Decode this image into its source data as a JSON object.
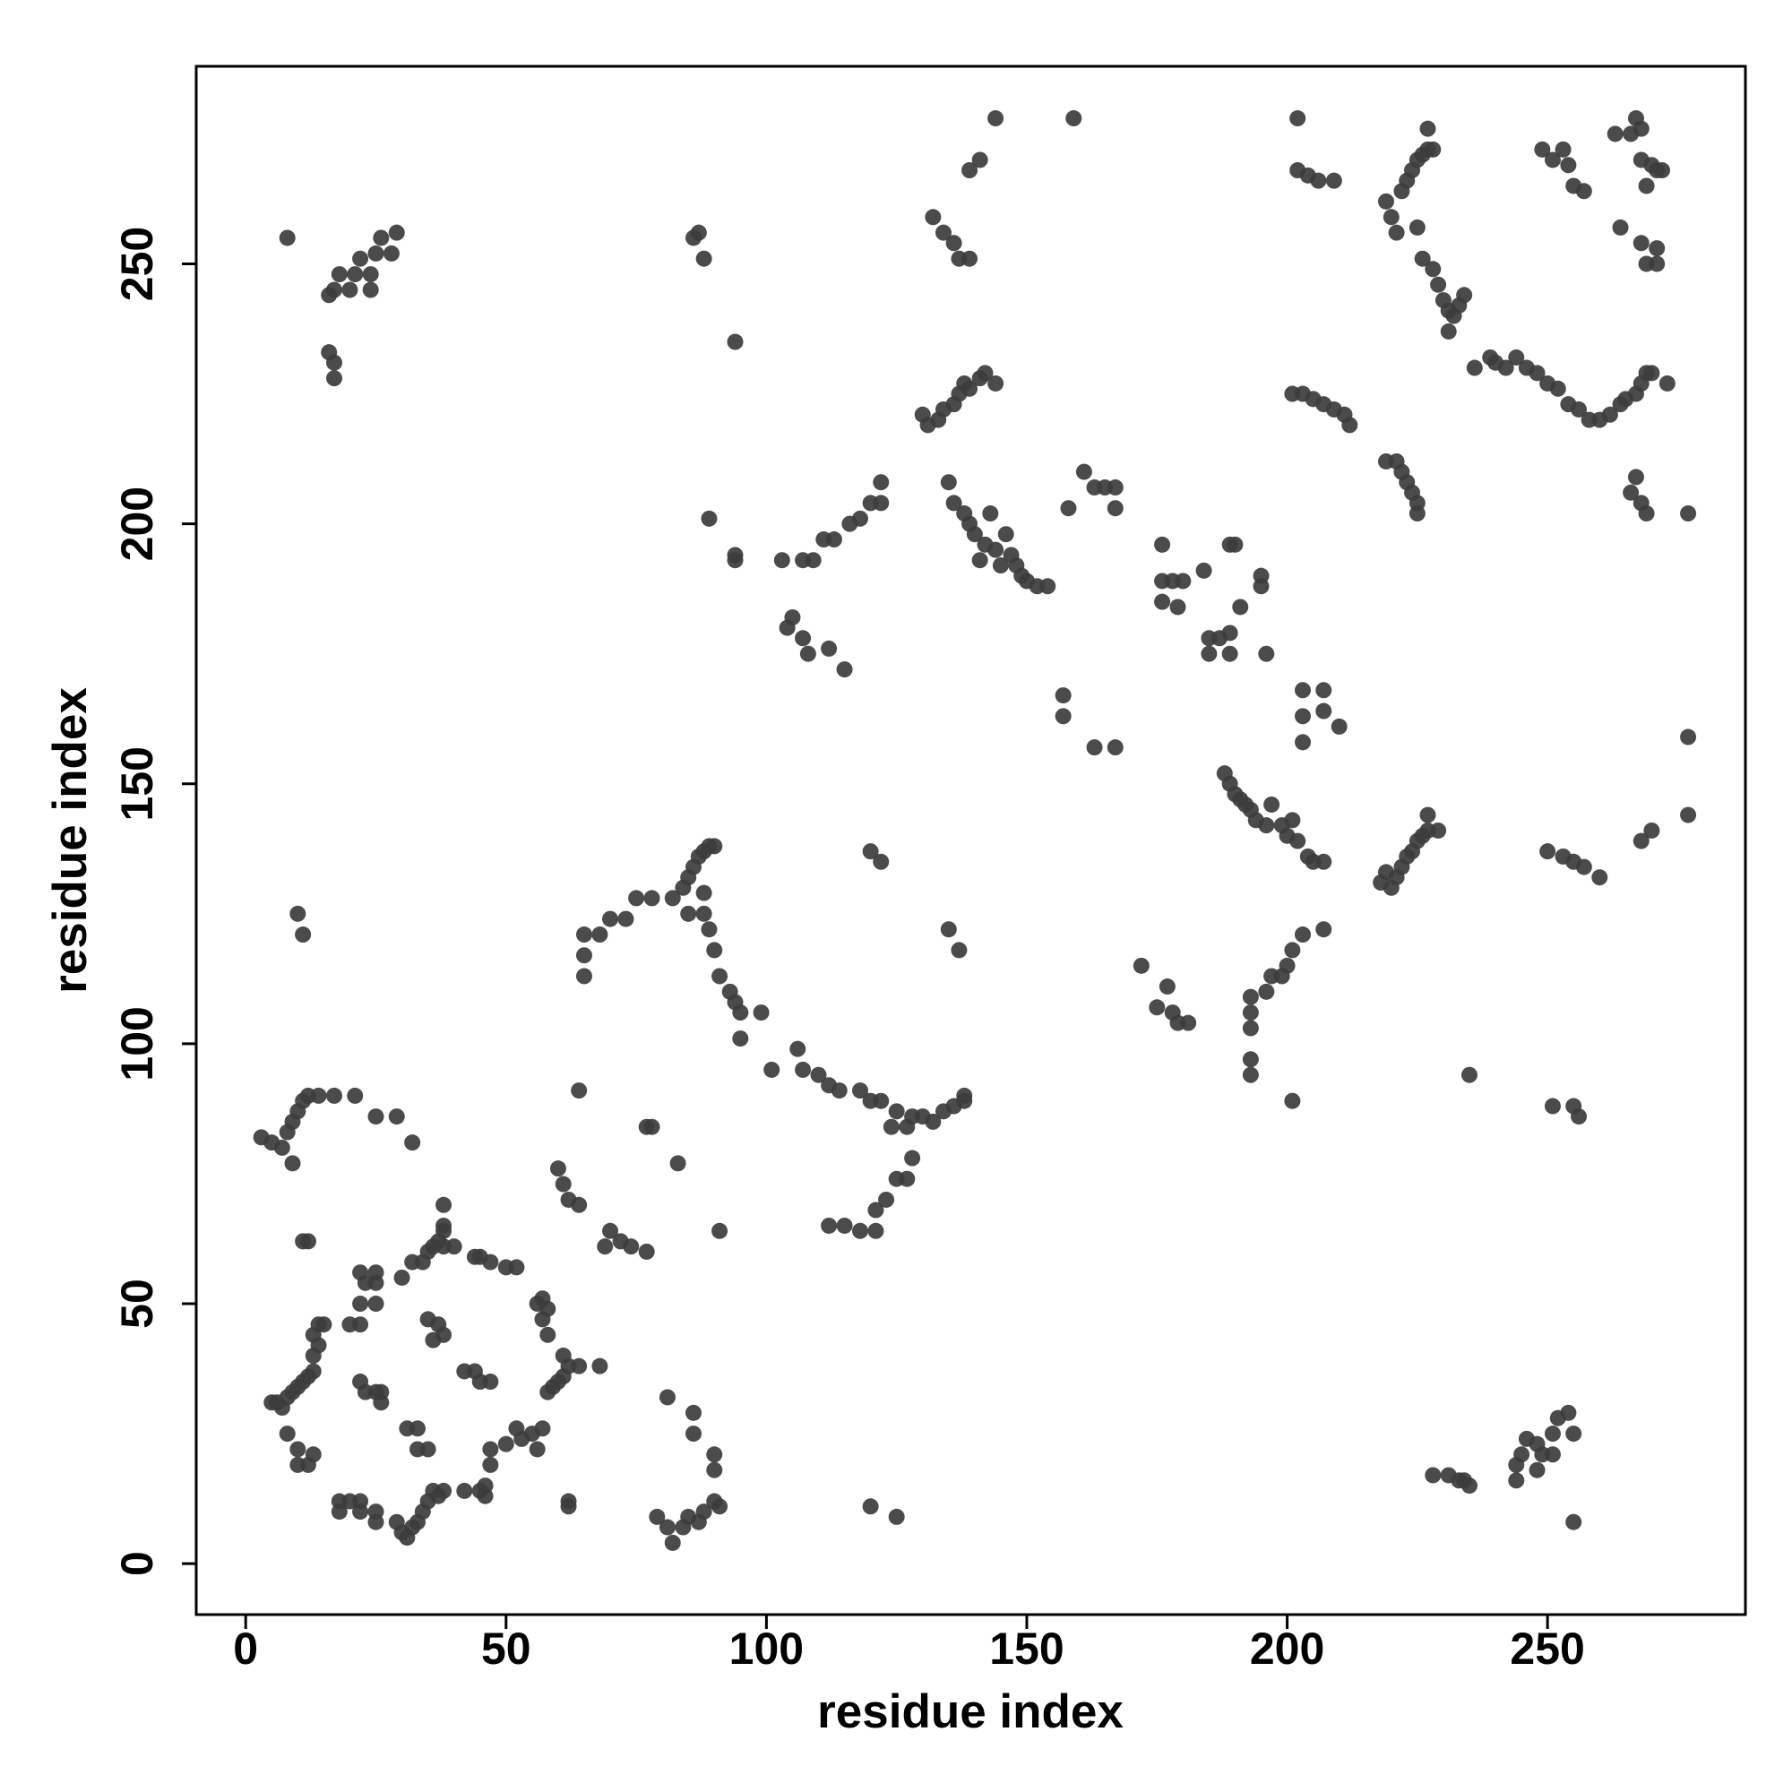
{
  "chart_data": {
    "type": "scatter",
    "xlabel": "residue index",
    "ylabel": "residue index",
    "color": "#3c3c3c",
    "xlim": [
      -9.5,
      288
    ],
    "ylim": [
      -9.8,
      288
    ],
    "xticks": [
      0,
      50,
      100,
      150,
      200,
      250
    ],
    "yticks": [
      0,
      50,
      100,
      150,
      200,
      250
    ],
    "x": [
      5,
      6,
      7,
      8,
      9,
      10,
      11,
      12,
      13,
      13,
      14,
      13,
      14,
      15,
      8,
      10,
      10,
      12,
      13,
      18,
      18,
      20,
      22,
      22,
      25,
      25,
      29,
      30,
      31,
      32,
      33,
      34,
      35,
      36,
      37,
      38,
      42,
      45,
      46,
      46,
      47,
      47,
      50,
      52,
      53,
      55,
      56,
      57,
      58,
      59,
      60,
      61,
      62,
      64,
      61,
      58,
      57,
      58,
      57,
      56,
      52,
      50,
      47,
      45,
      44,
      40,
      38,
      37,
      36,
      38,
      38,
      38,
      35,
      34,
      32,
      30,
      25,
      25,
      25,
      23,
      22,
      22,
      20,
      22,
      22,
      23,
      25,
      26,
      26,
      31,
      33,
      33,
      35,
      36,
      37,
      38,
      35,
      45,
      47,
      42,
      44,
      12,
      11,
      3,
      5,
      7,
      8,
      9,
      10,
      11,
      12,
      14,
      17,
      21,
      25,
      29,
      32,
      9,
      10,
      11,
      8,
      16,
      17,
      18,
      20,
      21,
      22,
      24,
      24,
      25,
      26,
      28,
      29,
      16,
      17,
      17,
      60,
      61,
      62,
      64,
      64,
      62,
      62,
      69,
      70,
      72,
      74,
      77,
      68,
      78,
      77,
      83,
      81,
      86,
      86,
      81,
      82,
      84,
      85,
      87,
      88,
      90,
      90,
      90,
      91,
      79,
      91,
      65,
      65,
      65,
      68,
      70,
      73,
      75,
      78,
      82,
      84,
      85,
      86,
      87,
      88,
      89,
      90,
      85,
      88,
      88,
      89,
      90,
      91,
      93,
      94,
      95,
      95,
      99,
      101,
      106,
      107,
      110,
      112,
      114,
      118,
      120,
      122,
      124,
      125,
      127,
      128,
      130,
      132,
      134,
      136,
      138,
      138,
      112,
      115,
      118,
      121,
      121,
      123,
      125,
      127,
      128,
      120,
      125,
      120,
      122,
      135,
      137,
      104,
      105,
      107,
      108,
      112,
      115,
      103,
      107,
      109,
      111,
      113,
      116,
      118,
      120,
      122,
      122,
      94,
      94,
      89,
      94,
      87,
      88,
      86,
      130,
      131,
      133,
      134,
      136,
      137,
      138,
      139,
      141,
      142,
      144,
      132,
      134,
      136,
      137,
      139,
      139,
      141,
      144,
      159,
      135,
      136,
      138,
      139,
      140,
      142,
      143,
      144,
      145,
      146,
      147,
      148,
      149,
      150,
      152,
      154,
      141,
      158,
      161,
      163,
      165,
      167,
      167,
      157,
      157,
      163,
      167,
      176,
      176,
      176,
      178,
      179,
      180,
      184,
      185,
      185,
      187,
      189,
      189,
      189,
      190,
      191,
      195,
      195,
      196,
      188,
      189,
      190,
      191,
      192,
      193,
      194,
      196,
      197,
      199,
      200,
      201,
      202,
      204,
      205,
      207,
      172,
      175,
      177,
      178,
      179,
      181,
      193,
      193,
      193,
      193,
      193,
      196,
      197,
      199,
      200,
      201,
      203,
      207,
      201,
      203,
      203,
      203,
      207,
      207,
      210,
      201,
      203,
      205,
      207,
      209,
      211,
      212,
      202,
      204,
      206,
      209,
      202,
      219,
      221,
      222,
      223,
      224,
      225,
      225,
      218,
      219,
      220,
      221,
      222,
      223,
      224,
      225,
      226,
      227,
      229,
      227,
      219,
      220,
      221,
      222,
      223,
      224,
      225,
      226,
      227,
      228,
      227,
      225,
      226,
      228,
      229,
      230,
      231,
      232,
      233,
      234,
      231,
      236,
      239,
      240,
      242,
      244,
      246,
      248,
      250,
      252,
      254,
      256,
      258,
      260,
      262,
      264,
      265,
      267,
      268,
      269,
      270,
      273,
      249,
      251,
      253,
      254,
      255,
      257,
      263,
      266,
      267,
      268,
      268,
      270,
      271,
      272,
      269,
      264,
      268,
      271,
      269,
      271,
      267,
      266,
      268,
      269,
      277,
      277,
      277,
      268,
      270,
      250,
      253,
      255,
      257,
      260,
      235,
      251,
      255,
      256,
      228,
      231,
      233,
      234,
      244,
      244,
      245,
      246,
      248,
      248,
      249,
      251,
      251,
      252,
      254,
      255,
      255,
      235
    ],
    "values": [
      31,
      31,
      30,
      32,
      33,
      34,
      35,
      36,
      37,
      40,
      42,
      44,
      46,
      46,
      25,
      22,
      19,
      19,
      21,
      12,
      10,
      12,
      12,
      10,
      10,
      8,
      8,
      6,
      5,
      7,
      8,
      10,
      12,
      14,
      13,
      14,
      14,
      14,
      13,
      15,
      19,
      22,
      23,
      26,
      24,
      25,
      22,
      26,
      33,
      34,
      35,
      36,
      38,
      38,
      40,
      44,
      47,
      49,
      51,
      50,
      57,
      57,
      58,
      59,
      59,
      61,
      61,
      62,
      61,
      64,
      65,
      69,
      60,
      58,
      58,
      55,
      50,
      54,
      56,
      54,
      56,
      50,
      46,
      46,
      35,
      33,
      33,
      33,
      31,
      26,
      26,
      22,
      22,
      43,
      46,
      44,
      47,
      35,
      35,
      37,
      37,
      62,
      62,
      82,
      81,
      80,
      83,
      85,
      87,
      89,
      90,
      90,
      90,
      90,
      86,
      86,
      81,
      77,
      125,
      121,
      255,
      244,
      245,
      248,
      245,
      248,
      251,
      248,
      245,
      252,
      255,
      252,
      256,
      233,
      231,
      228,
      76,
      73,
      70,
      69,
      91,
      11,
      12,
      61,
      64,
      62,
      61,
      60,
      38,
      84,
      84,
      77,
      32,
      29,
      25,
      7,
      4,
      7,
      9,
      8,
      10,
      12,
      18,
      21,
      11,
      9,
      64,
      113,
      117,
      121,
      121,
      124,
      124,
      128,
      128,
      128,
      130,
      132,
      134,
      136,
      137,
      138,
      138,
      125,
      125,
      129,
      122,
      118,
      113,
      110,
      108,
      106,
      101,
      106,
      95,
      99,
      95,
      94,
      92,
      91,
      91,
      89,
      89,
      84,
      87,
      84,
      86,
      86,
      85,
      87,
      88,
      89,
      90,
      65,
      65,
      64,
      64,
      68,
      70,
      74,
      74,
      78,
      11,
      9,
      137,
      135,
      122,
      118,
      180,
      182,
      178,
      175,
      176,
      172,
      193,
      193,
      193,
      197,
      197,
      200,
      201,
      204,
      204,
      208,
      193,
      194,
      201,
      235,
      256,
      251,
      255,
      221,
      219,
      220,
      222,
      223,
      225,
      227,
      226,
      228,
      229,
      227,
      259,
      256,
      254,
      251,
      251,
      268,
      270,
      278,
      278,
      208,
      204,
      202,
      200,
      198,
      196,
      202,
      195,
      192,
      198,
      194,
      192,
      190,
      189,
      188,
      188,
      193,
      203,
      210,
      207,
      207,
      203,
      207,
      167,
      163,
      157,
      157,
      196,
      189,
      185,
      189,
      184,
      189,
      191,
      178,
      175,
      178,
      179,
      175,
      196,
      196,
      184,
      190,
      188,
      175,
      152,
      150,
      148,
      147,
      146,
      145,
      143,
      142,
      146,
      142,
      140,
      143,
      139,
      136,
      135,
      135,
      115,
      107,
      111,
      106,
      104,
      104,
      94,
      97,
      103,
      106,
      109,
      110,
      113,
      113,
      115,
      118,
      121,
      122,
      89,
      168,
      163,
      158,
      168,
      164,
      161,
      225,
      225,
      224,
      223,
      222,
      221,
      219,
      268,
      267,
      266,
      266,
      278,
      212,
      212,
      210,
      208,
      206,
      202,
      204,
      131,
      133,
      130,
      132,
      134,
      136,
      137,
      139,
      140,
      141,
      141,
      144,
      262,
      259,
      256,
      264,
      266,
      268,
      270,
      271,
      272,
      272,
      276,
      257,
      251,
      249,
      246,
      243,
      241,
      240,
      242,
      244,
      237,
      230,
      232,
      231,
      230,
      232,
      230,
      229,
      227,
      226,
      223,
      222,
      220,
      220,
      221,
      223,
      224,
      225,
      227,
      229,
      229,
      227,
      272,
      270,
      272,
      269,
      265,
      264,
      275,
      275,
      278,
      276,
      270,
      269,
      268,
      268,
      265,
      257,
      254,
      253,
      250,
      250,
      209,
      206,
      204,
      202,
      202,
      159,
      144,
      139,
      141,
      137,
      136,
      135,
      134,
      132,
      94,
      88,
      88,
      86,
      17,
      17,
      16,
      16,
      16,
      19,
      21,
      24,
      23,
      18,
      21,
      21,
      25,
      28,
      29,
      25,
      8,
      15
    ]
  }
}
